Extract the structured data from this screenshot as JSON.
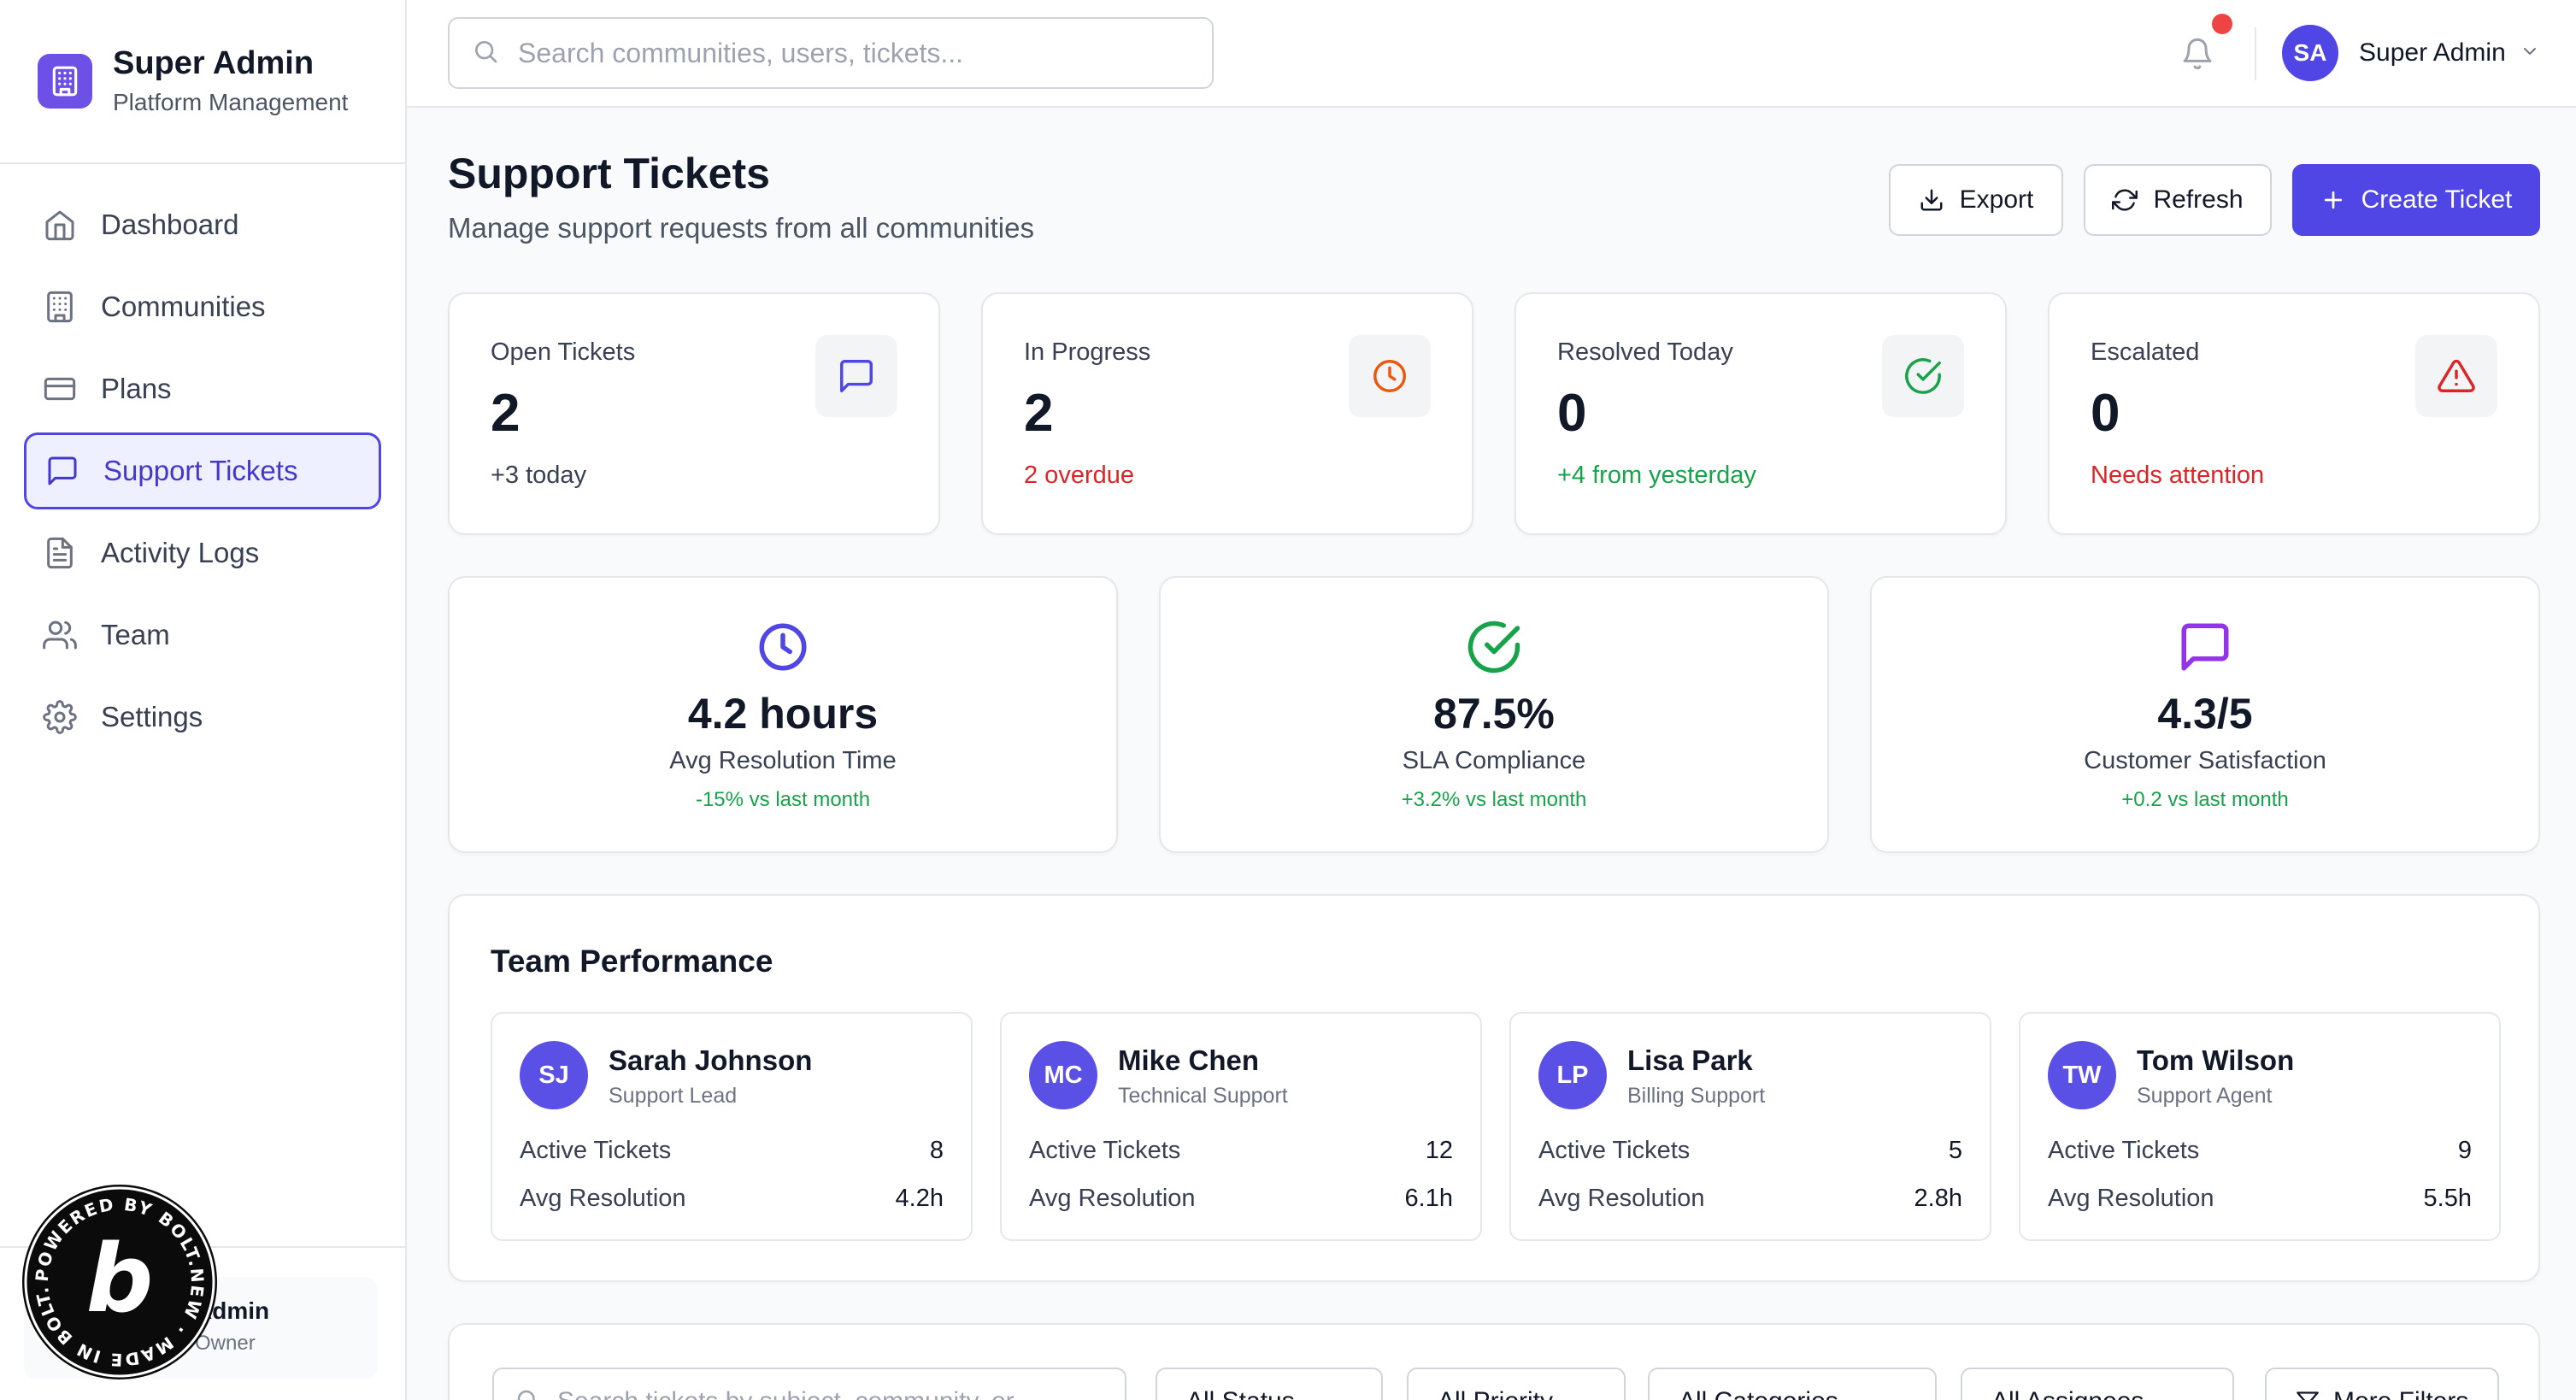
{
  "brand": {
    "title": "Super Admin",
    "subtitle": "Platform Management"
  },
  "sidebar": {
    "items": [
      {
        "label": "Dashboard",
        "icon": "home-icon"
      },
      {
        "label": "Communities",
        "icon": "building-icon"
      },
      {
        "label": "Plans",
        "icon": "credit-card-icon"
      },
      {
        "label": "Support Tickets",
        "icon": "message-square-icon",
        "active": true
      },
      {
        "label": "Activity Logs",
        "icon": "file-text-icon"
      },
      {
        "label": "Team",
        "icon": "users-icon"
      },
      {
        "label": "Settings",
        "icon": "gear-icon"
      }
    ],
    "footer": {
      "name": "Admin",
      "role": "Owner"
    }
  },
  "header": {
    "search_placeholder": "Search communities, users, tickets...",
    "user": {
      "initials": "SA",
      "name": "Super Admin"
    }
  },
  "page": {
    "title": "Support Tickets",
    "subtitle": "Manage support requests from all communities",
    "actions": {
      "export": "Export",
      "refresh": "Refresh",
      "create": "Create Ticket"
    }
  },
  "stats": [
    {
      "label": "Open Tickets",
      "value": "2",
      "sub": "+3 today",
      "sub_color": "#374151",
      "icon": "message-square-icon"
    },
    {
      "label": "In Progress",
      "value": "2",
      "sub": "2 overdue",
      "sub_color": "#dc2626",
      "icon": "clock-icon"
    },
    {
      "label": "Resolved Today",
      "value": "0",
      "sub": "+4 from yesterday",
      "sub_color": "#16a34a",
      "icon": "check-circle-icon"
    },
    {
      "label": "Escalated",
      "value": "0",
      "sub": "Needs attention",
      "sub_color": "#dc2626",
      "icon": "alert-triangle-icon"
    }
  ],
  "metrics": [
    {
      "value": "4.2 hours",
      "label": "Avg Resolution Time",
      "delta": "-15% vs last month",
      "icon": "clock-icon"
    },
    {
      "value": "87.5%",
      "label": "SLA Compliance",
      "delta": "+3.2% vs last month",
      "icon": "check-circle-icon"
    },
    {
      "value": "4.3/5",
      "label": "Customer Satisfaction",
      "delta": "+0.2 vs last month",
      "icon": "message-square-icon"
    }
  ],
  "team": {
    "title": "Team Performance",
    "active_label": "Active Tickets",
    "resolution_label": "Avg Resolution",
    "members": [
      {
        "initials": "SJ",
        "name": "Sarah Johnson",
        "role": "Support Lead",
        "active": "8",
        "avg": "4.2h"
      },
      {
        "initials": "MC",
        "name": "Mike Chen",
        "role": "Technical Support",
        "active": "12",
        "avg": "6.1h"
      },
      {
        "initials": "LP",
        "name": "Lisa Park",
        "role": "Billing Support",
        "active": "5",
        "avg": "2.8h"
      },
      {
        "initials": "TW",
        "name": "Tom Wilson",
        "role": "Support Agent",
        "active": "9",
        "avg": "5.5h"
      }
    ]
  },
  "filters": {
    "search_placeholder": "Search tickets by subject, community, or...",
    "status": "All Status",
    "priority": "All Priority",
    "categories": "All Categories",
    "assignees": "All Assignees",
    "more": "More Filters"
  },
  "colors": {
    "accent": "#4f46e5",
    "brand_logo": "#6d50e6",
    "success": "#16a34a",
    "danger": "#dc2626",
    "warning": "#ea580c",
    "purple": "#9333ea"
  }
}
